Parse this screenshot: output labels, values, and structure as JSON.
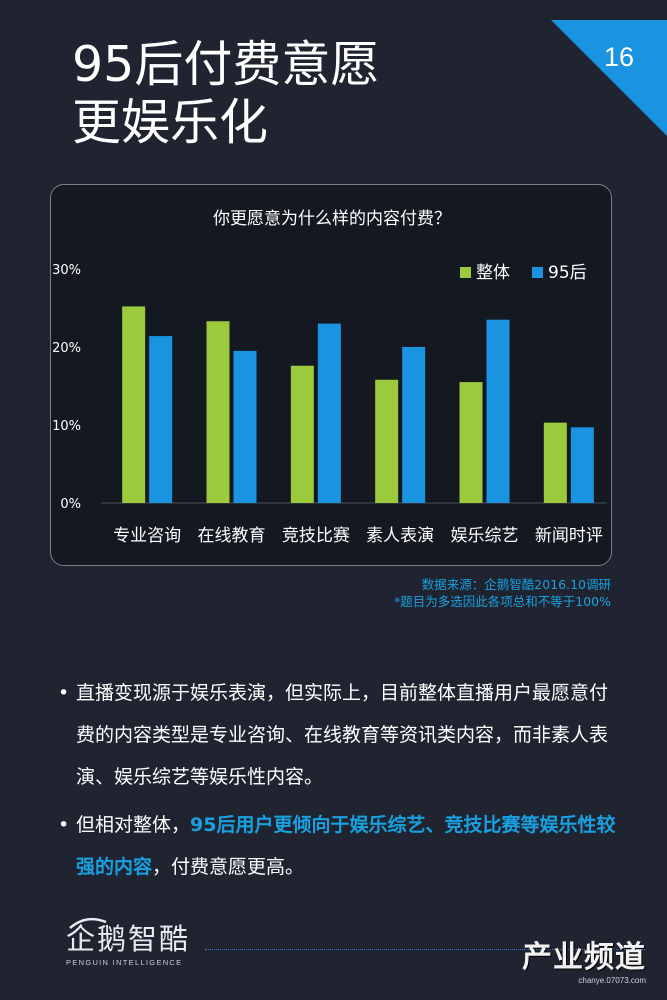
{
  "title": {
    "line1": "95后付费意愿",
    "line2": "更娱乐化"
  },
  "page_number": "16",
  "chart_data": {
    "type": "bar",
    "title": "你更愿意为什么样的内容付费？",
    "categories": [
      "专业咨询",
      "在线教育",
      "竞技比赛",
      "素人表演",
      "娱乐综艺",
      "新闻时评"
    ],
    "series": [
      {
        "name": "整体",
        "color": "#9bcb3c",
        "values": [
          25.2,
          23.3,
          17.6,
          15.8,
          15.5,
          10.3
        ]
      },
      {
        "name": "95后",
        "color": "#1a94e0",
        "values": [
          21.4,
          19.5,
          23.0,
          20.0,
          23.5,
          9.7
        ]
      }
    ],
    "yticks": [
      "30%",
      "20%",
      "10%",
      "0%"
    ],
    "ylim": [
      0,
      30
    ],
    "legend_position": "top-right"
  },
  "source": {
    "line1": "数据来源：企鹅智酷2016.10调研",
    "line2": "*题目为多选因此各项总和不等于100%"
  },
  "bullets": [
    {
      "dot": "•",
      "text": "直播变现源于娱乐表演，但实际上，目前整体直播用户最愿意付费的内容类型是专业咨询、在线教育等资讯类内容，而非素人表演、娱乐综艺等娱乐性内容。"
    },
    {
      "dot": "•",
      "prefix": "但相对整体，",
      "highlight": "95后用户更倾向于娱乐综艺、竞技比赛等娱乐性较强的内容",
      "suffix": "，付费意愿更高。"
    }
  ],
  "logo": {
    "name": "企鹅智酷",
    "sub": "PENGUIN INTELLIGENCE"
  },
  "watermark": {
    "main": "产业频道",
    "sub": "chanye.07073.com"
  },
  "colors": {
    "background": "#1f2430",
    "accent": "#19a0e0",
    "green": "#9bcb3c",
    "blue": "#1a94e0"
  }
}
